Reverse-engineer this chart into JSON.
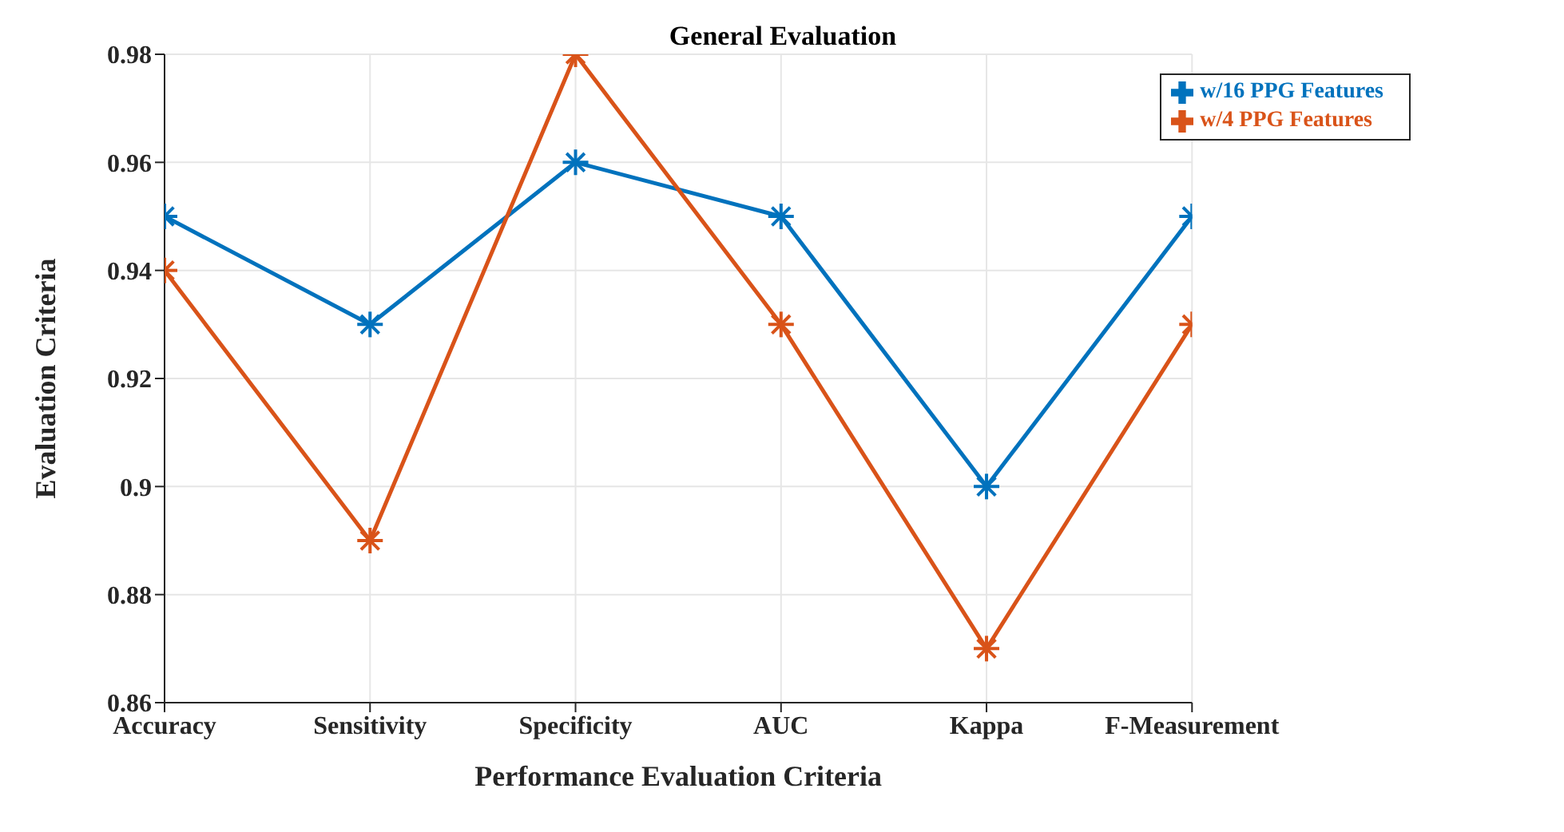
{
  "chart_data": {
    "type": "line",
    "title": "General  Evaluation",
    "xlabel": "Performance Evaluation Criteria",
    "ylabel": "Evaluation Criteria",
    "categories": [
      "Accuracy",
      "Sensitivity",
      "Specificity",
      "AUC",
      "Kappa",
      "F-Measurement"
    ],
    "series": [
      {
        "name": "w/16 PPG Features",
        "color": "#0072bd",
        "values": [
          0.95,
          0.93,
          0.96,
          0.95,
          0.9,
          0.95
        ]
      },
      {
        "name": "w/4 PPG Features",
        "color": "#d95319",
        "values": [
          0.94,
          0.89,
          0.98,
          0.93,
          0.87,
          0.93
        ]
      }
    ],
    "ylim": [
      0.86,
      0.98
    ],
    "yticks": [
      0.86,
      0.88,
      0.9,
      0.92,
      0.94,
      0.96,
      0.98
    ],
    "grid": true,
    "legend": "top right",
    "marker": "cross",
    "line_style": "solid"
  }
}
